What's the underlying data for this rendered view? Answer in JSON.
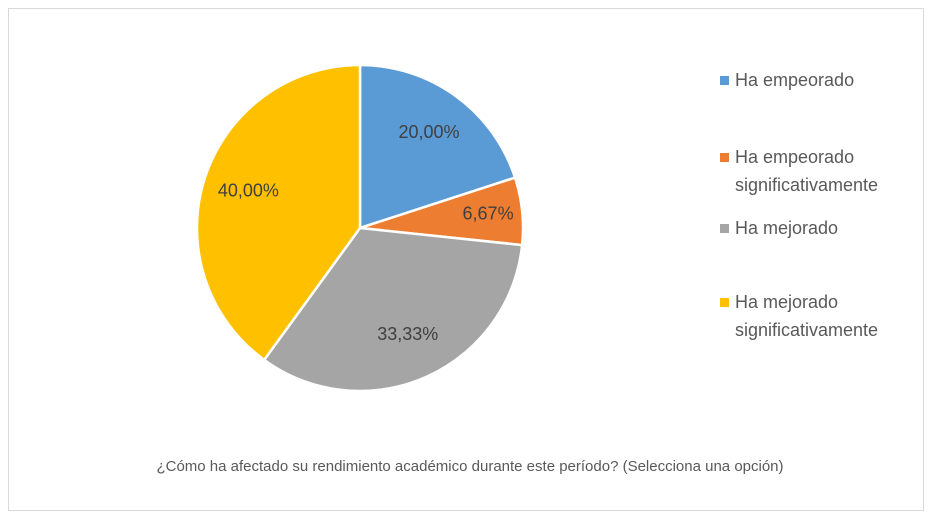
{
  "chart_data": {
    "type": "pie",
    "title": "¿Cómo ha afectado su rendimiento académico durante este período? (Selecciona una opción)",
    "categories": [
      "Ha empeorado",
      "Ha empeorado significativamente",
      "Ha mejorado",
      "Ha mejorado significativamente"
    ],
    "values": [
      20,
      6.67,
      33.33,
      40
    ],
    "value_labels": [
      "20,00%",
      "6,67%",
      "33,33%",
      "40,00%"
    ],
    "colors": [
      "#5b9bd5",
      "#ed7d31",
      "#a5a5a5",
      "#ffc000"
    ],
    "legend": "right"
  }
}
